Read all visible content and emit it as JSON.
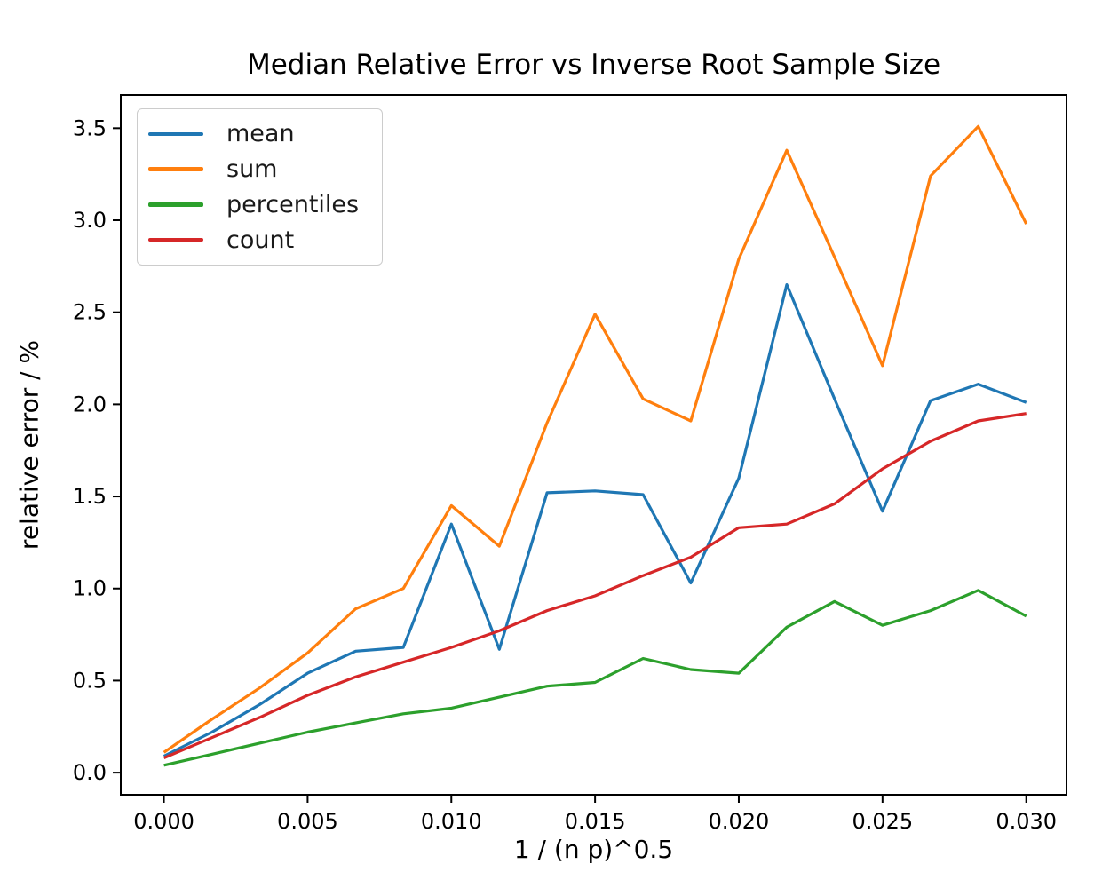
{
  "chart_data": {
    "type": "line",
    "title": "Median Relative Error vs Inverse Root Sample Size",
    "xlabel": "1 / (n p)^0.5",
    "ylabel": "relative error / %",
    "xlim": [
      -0.0015,
      0.0314
    ],
    "ylim": [
      -0.12,
      3.68
    ],
    "grid": false,
    "legend_position": "upper left",
    "xticks": {
      "values": [
        0.0,
        0.005,
        0.01,
        0.015,
        0.02,
        0.025,
        0.03
      ],
      "labels": [
        "0.000",
        "0.005",
        "0.010",
        "0.015",
        "0.020",
        "0.025",
        "0.030"
      ]
    },
    "yticks": {
      "values": [
        0.0,
        0.5,
        1.0,
        1.5,
        2.0,
        2.5,
        3.0,
        3.5
      ],
      "labels": [
        "0.0",
        "0.5",
        "1.0",
        "1.5",
        "2.0",
        "2.5",
        "3.0",
        "3.5"
      ]
    },
    "x": [
      0.0,
      0.00167,
      0.00333,
      0.005,
      0.00667,
      0.00833,
      0.01,
      0.01167,
      0.01333,
      0.015,
      0.01667,
      0.01833,
      0.02,
      0.02167,
      0.02333,
      0.025,
      0.02667,
      0.02833,
      0.03
    ],
    "series": [
      {
        "name": "mean",
        "color": "#1f77b4",
        "values": [
          0.09,
          0.22,
          0.37,
          0.54,
          0.66,
          0.68,
          1.35,
          0.67,
          1.52,
          1.53,
          1.51,
          1.03,
          1.6,
          2.65,
          2.03,
          1.42,
          2.02,
          2.11,
          2.01
        ]
      },
      {
        "name": "sum",
        "color": "#ff7f0e",
        "values": [
          0.11,
          0.29,
          0.46,
          0.65,
          0.89,
          1.0,
          1.45,
          1.23,
          1.9,
          2.49,
          2.03,
          1.91,
          2.79,
          3.38,
          2.8,
          2.21,
          3.24,
          3.51,
          2.98
        ]
      },
      {
        "name": "percentiles",
        "color": "#2ca02c",
        "values": [
          0.04,
          0.1,
          0.16,
          0.22,
          0.27,
          0.32,
          0.35,
          0.41,
          0.47,
          0.49,
          0.62,
          0.56,
          0.54,
          0.79,
          0.93,
          0.8,
          0.88,
          0.99,
          0.85
        ]
      },
      {
        "name": "count",
        "color": "#d62728",
        "values": [
          0.08,
          0.19,
          0.3,
          0.42,
          0.52,
          0.6,
          0.68,
          0.77,
          0.88,
          0.96,
          1.07,
          1.17,
          1.33,
          1.35,
          1.46,
          1.65,
          1.8,
          1.91,
          1.95
        ]
      }
    ]
  }
}
